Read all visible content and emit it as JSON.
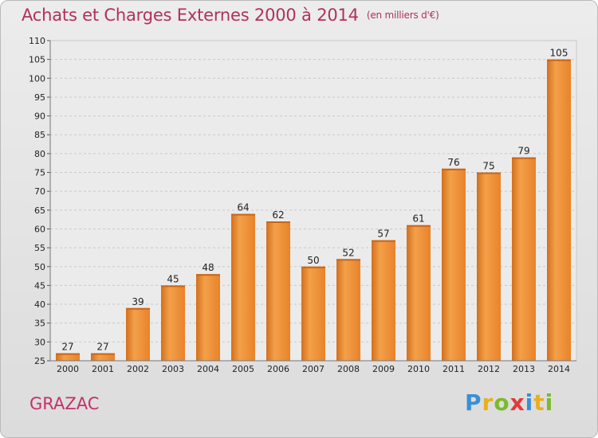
{
  "chart_data": {
    "type": "bar",
    "title": "Achats et Charges Externes 2000 à 2014",
    "subtitle": "(en milliers d'€)",
    "categories": [
      "2000",
      "2001",
      "2002",
      "2003",
      "2004",
      "2005",
      "2006",
      "2007",
      "2008",
      "2009",
      "2010",
      "2011",
      "2012",
      "2013",
      "2014"
    ],
    "values": [
      27,
      27,
      39,
      45,
      48,
      64,
      62,
      50,
      52,
      57,
      61,
      76,
      75,
      79,
      105
    ],
    "ylim": [
      25,
      110
    ],
    "yticks": [
      25,
      30,
      35,
      40,
      45,
      50,
      55,
      60,
      65,
      70,
      75,
      80,
      85,
      90,
      95,
      100,
      105,
      110
    ],
    "grid": true,
    "bar_color": "#f0913a"
  },
  "footer": {
    "town": "GRAZAC",
    "logo": {
      "letters": [
        "P",
        "r",
        "o",
        "x",
        "i",
        "t",
        "i"
      ],
      "colors": [
        "#3a8fd6",
        "#e8b020",
        "#7cba2c",
        "#e23a3a",
        "#3a8fd6",
        "#e8b020",
        "#7cba2c"
      ]
    }
  }
}
